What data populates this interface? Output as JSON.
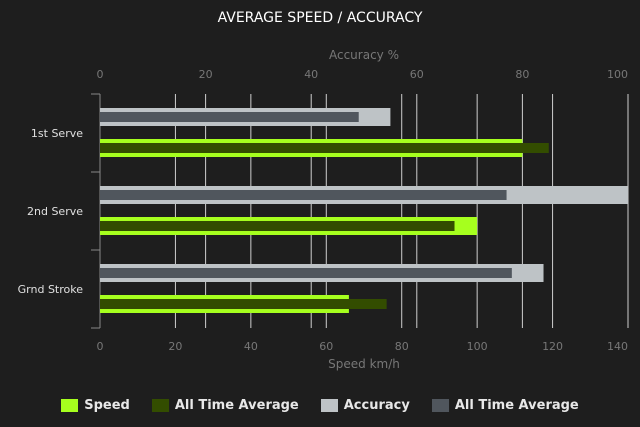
{
  "chart_data": {
    "type": "bar",
    "orientation": "horizontal",
    "title": "AVERAGE SPEED / ACCURACY",
    "categories": [
      "1st Serve",
      "2nd Serve",
      "Grnd Stroke"
    ],
    "xlabel_bottom": "Speed km/h",
    "xlabel_top": "Accuracy %",
    "speed_axis": {
      "range": [
        0,
        140
      ],
      "ticks": [
        0,
        20,
        40,
        60,
        80,
        100,
        120,
        140
      ]
    },
    "accuracy_axis": {
      "range": [
        0,
        100
      ],
      "ticks": [
        0,
        20,
        40,
        60,
        80,
        100
      ]
    },
    "grid": true,
    "legend_placement": "bottom",
    "series": [
      {
        "name": "Speed",
        "axis": "speed",
        "values": [
          112,
          100,
          66
        ],
        "color": "#a6ff1e"
      },
      {
        "name": "All Time Average",
        "axis": "speed",
        "values": [
          119,
          94,
          76
        ],
        "color": "#334d00"
      },
      {
        "name": "Accuracy",
        "axis": "accuracy",
        "values": [
          55,
          100,
          84
        ],
        "color": "#bec3c6"
      },
      {
        "name": "All Time Average",
        "axis": "accuracy",
        "values": [
          49,
          77,
          78
        ],
        "color": "#50565d"
      }
    ]
  }
}
